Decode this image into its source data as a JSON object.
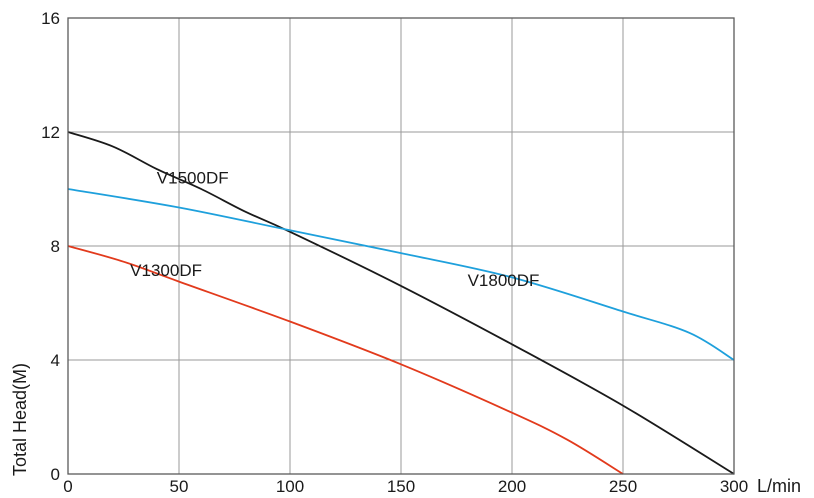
{
  "chart_data": {
    "type": "line",
    "xlabel": "L/min",
    "ylabel": "Total Head(M)",
    "xlim": [
      0,
      300
    ],
    "ylim": [
      0,
      16
    ],
    "x_ticks": [
      0,
      50,
      100,
      150,
      200,
      250,
      300
    ],
    "y_ticks": [
      0,
      4,
      8,
      12,
      16
    ],
    "x_tick_labels": [
      "0",
      "50",
      "100",
      "150",
      "200",
      "250",
      "300"
    ],
    "y_tick_labels": [
      "0",
      "4",
      "8",
      "12",
      "16"
    ],
    "grid": true,
    "series": [
      {
        "name": "V1500DF",
        "color": "#1a1a1a",
        "label_at": [
          40,
          10.2
        ],
        "points": [
          [
            0,
            12
          ],
          [
            20,
            11.5
          ],
          [
            40,
            10.7
          ],
          [
            60,
            10.0
          ],
          [
            80,
            9.2
          ],
          [
            100,
            8.5
          ],
          [
            150,
            6.6
          ],
          [
            200,
            4.55
          ],
          [
            250,
            2.4
          ],
          [
            300,
            0
          ]
        ]
      },
      {
        "name": "V1800DF",
        "color": "#1ea0dc",
        "label_at": [
          180,
          6.6
        ],
        "points": [
          [
            0,
            10
          ],
          [
            50,
            9.35
          ],
          [
            100,
            8.55
          ],
          [
            150,
            7.75
          ],
          [
            200,
            6.9
          ],
          [
            250,
            5.7
          ],
          [
            280,
            4.95
          ],
          [
            300,
            4.0
          ]
        ]
      },
      {
        "name": "V1300DF",
        "color": "#e23a1c",
        "label_at": [
          28,
          6.95
        ],
        "points": [
          [
            0,
            8
          ],
          [
            25,
            7.45
          ],
          [
            50,
            6.75
          ],
          [
            100,
            5.35
          ],
          [
            150,
            3.85
          ],
          [
            200,
            2.15
          ],
          [
            225,
            1.2
          ],
          [
            250,
            0
          ]
        ]
      }
    ]
  }
}
